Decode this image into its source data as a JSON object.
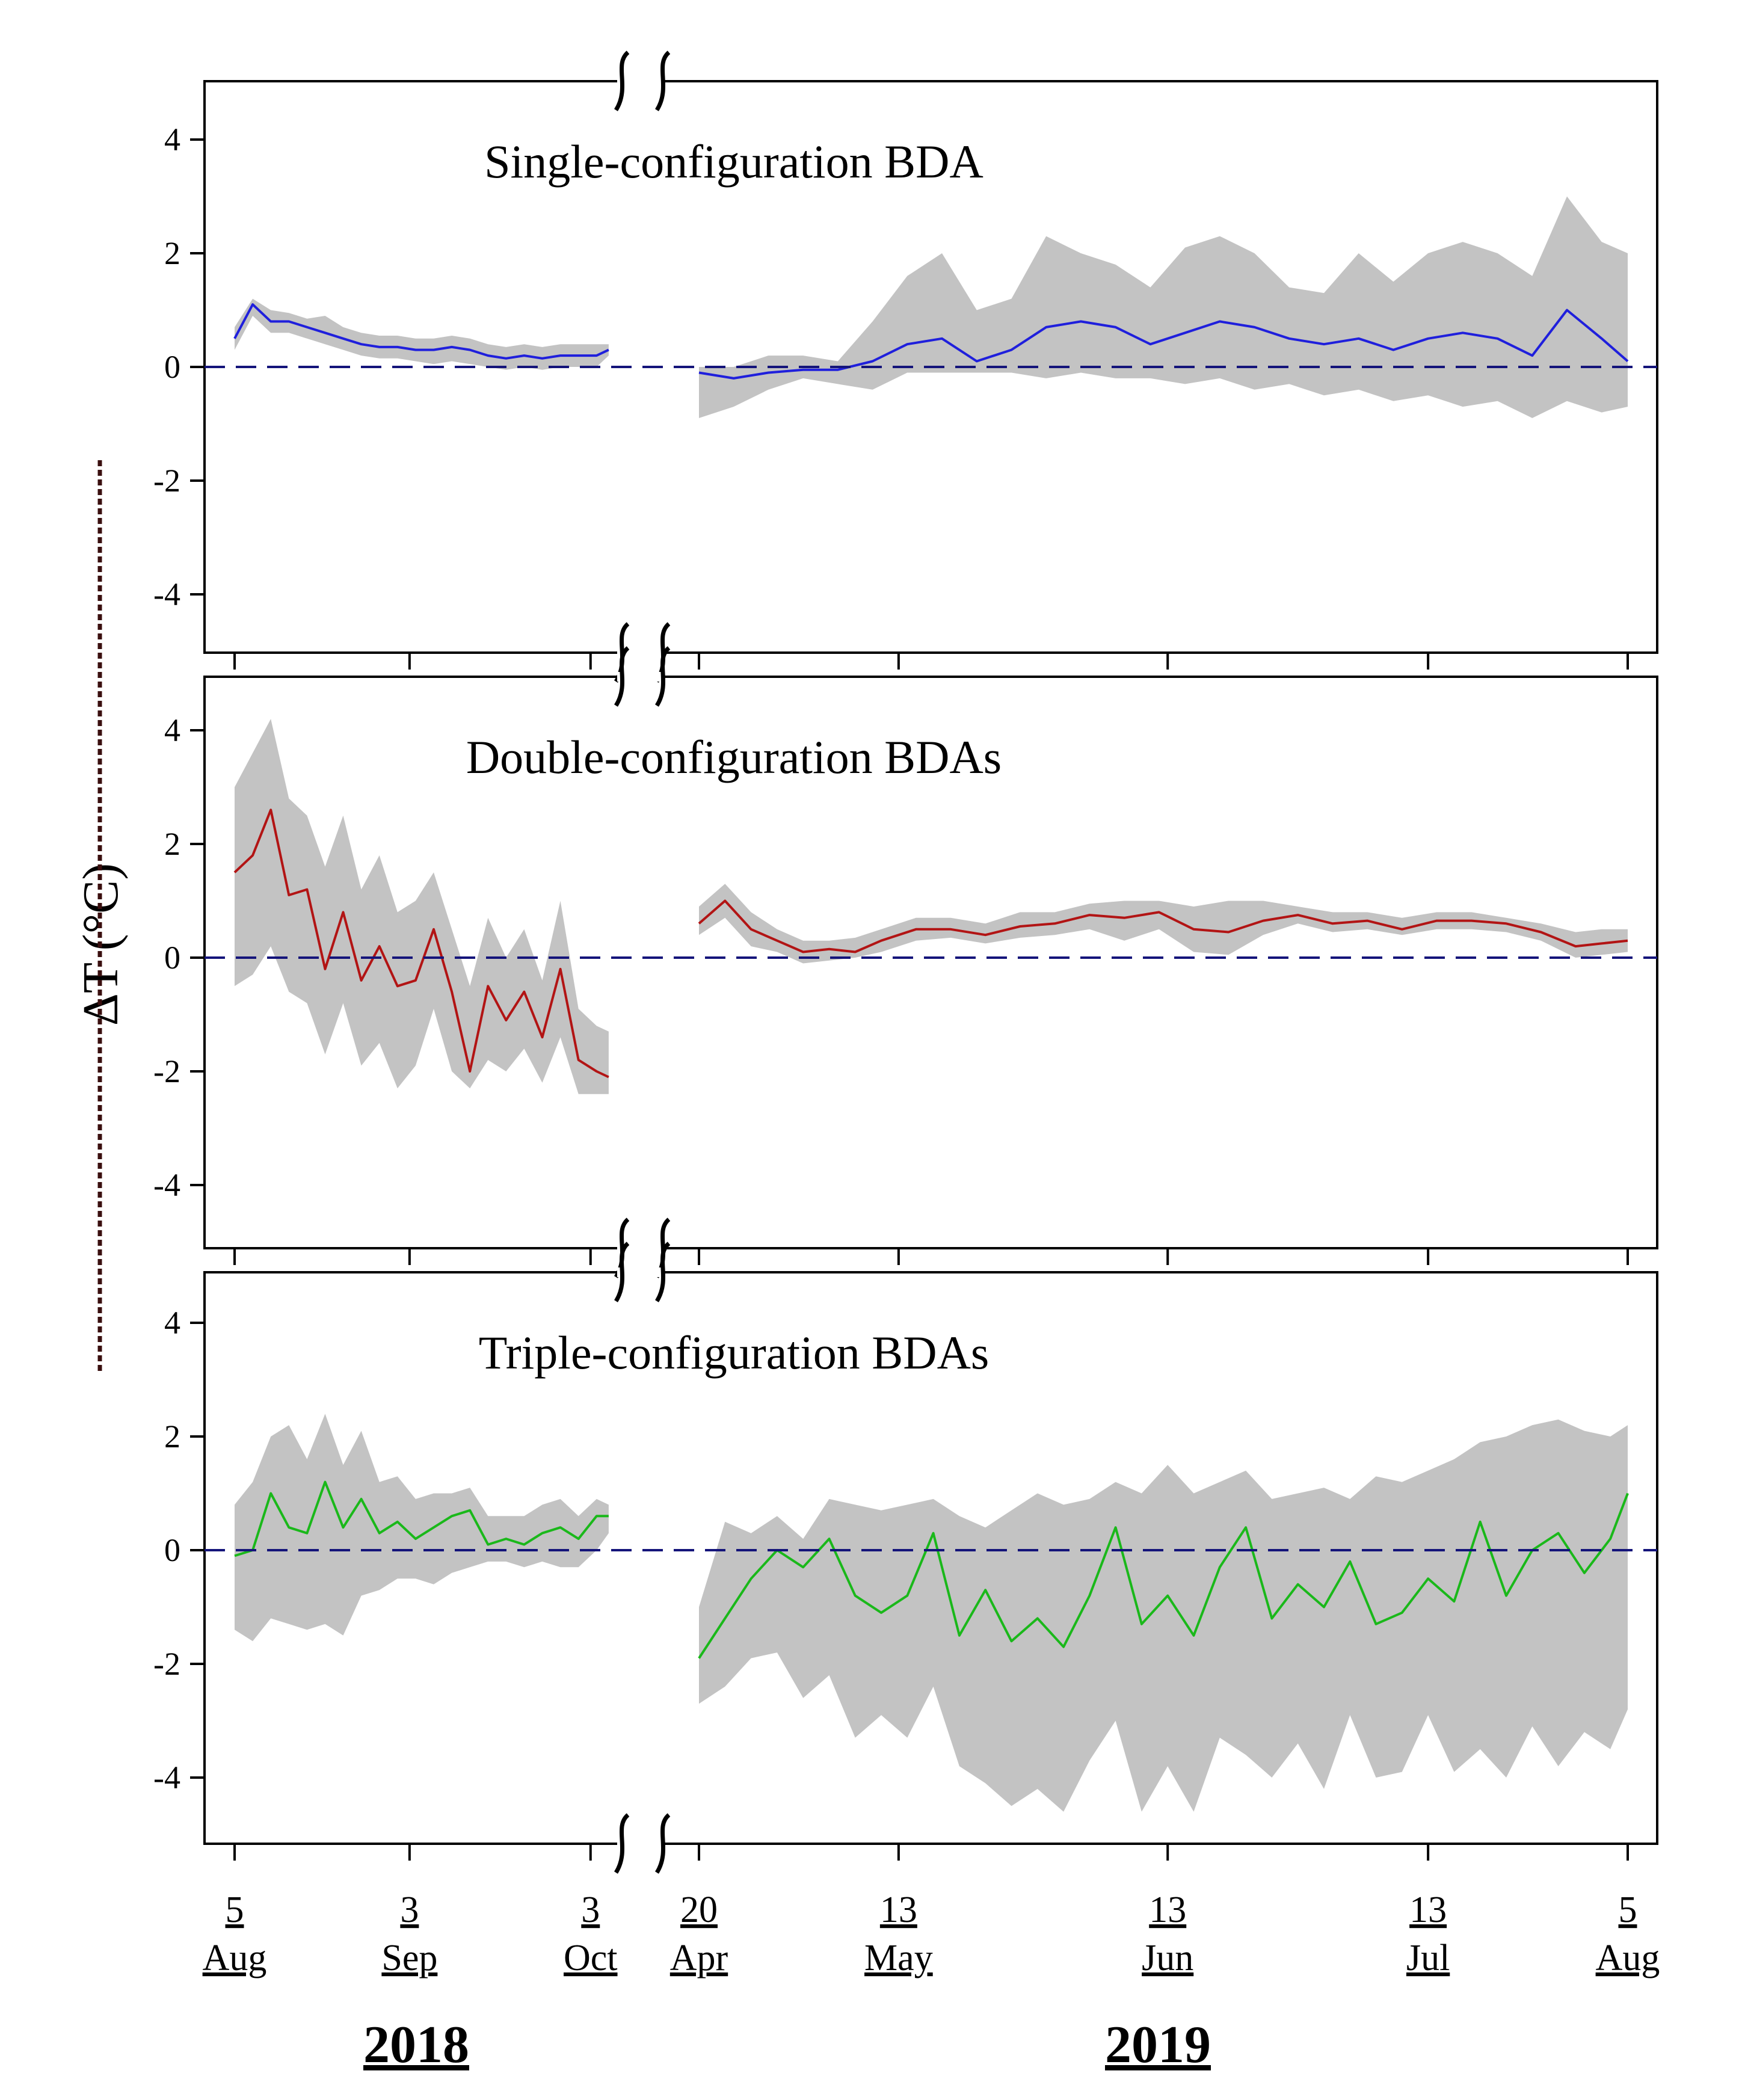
{
  "chart_data": {
    "type": "line",
    "ylabel": "ΔT (°C)",
    "y_ticks": [
      4,
      2,
      0,
      -2,
      -4
    ],
    "ylim": [
      -5,
      5
    ],
    "x_ticks": [
      {
        "day": "5",
        "month": "Aug",
        "days_since_2018_08_05": 0
      },
      {
        "day": "3",
        "month": "Sep",
        "days_since_2018_08_05": 29
      },
      {
        "day": "3",
        "month": "Oct",
        "days_since_2018_08_05": 59
      },
      {
        "day": "20",
        "month": "Apr",
        "days_since_2019_04_20": 0
      },
      {
        "day": "13",
        "month": "May",
        "days_since_2019_04_20": 23
      },
      {
        "day": "13",
        "month": "Jun",
        "days_since_2019_04_20": 54
      },
      {
        "day": "13",
        "month": "Jul",
        "days_since_2019_04_20": 84
      },
      {
        "day": "5",
        "month": "Aug",
        "days_since_2019_04_20": 107
      }
    ],
    "years": [
      "2018",
      "2019"
    ],
    "zero_line": 0,
    "panels": [
      {
        "title": "Single-configuration BDA",
        "line_color": "#1f1fdc",
        "series_2018": {
          "days": [
            0,
            3,
            6,
            9,
            12,
            15,
            18,
            21,
            24,
            27,
            30,
            33,
            36,
            39,
            42,
            45,
            48,
            51,
            54,
            57,
            60,
            62
          ],
          "mean": [
            0.5,
            1.1,
            0.8,
            0.8,
            0.7,
            0.6,
            0.5,
            0.4,
            0.35,
            0.35,
            0.3,
            0.3,
            0.35,
            0.3,
            0.2,
            0.15,
            0.2,
            0.15,
            0.2,
            0.2,
            0.2,
            0.3
          ],
          "upper": [
            0.7,
            1.2,
            1.0,
            0.95,
            0.85,
            0.9,
            0.7,
            0.6,
            0.55,
            0.55,
            0.5,
            0.5,
            0.55,
            0.5,
            0.4,
            0.35,
            0.4,
            0.35,
            0.4,
            0.4,
            0.4,
            0.4
          ],
          "lower": [
            0.3,
            0.9,
            0.6,
            0.6,
            0.5,
            0.4,
            0.3,
            0.2,
            0.15,
            0.15,
            0.1,
            0.05,
            0.1,
            0.05,
            0.0,
            -0.05,
            0.0,
            -0.05,
            0.0,
            0.0,
            0.0,
            0.2
          ]
        },
        "series_2019": {
          "days": [
            0,
            4,
            8,
            12,
            16,
            20,
            24,
            28,
            32,
            36,
            40,
            44,
            48,
            52,
            56,
            60,
            64,
            68,
            72,
            76,
            80,
            84,
            88,
            92,
            96,
            100,
            104,
            107
          ],
          "mean": [
            -0.1,
            -0.2,
            -0.1,
            -0.05,
            -0.05,
            0.1,
            0.4,
            0.5,
            0.1,
            0.3,
            0.7,
            0.8,
            0.7,
            0.4,
            0.6,
            0.8,
            0.7,
            0.5,
            0.4,
            0.5,
            0.3,
            0.5,
            0.6,
            0.5,
            0.2,
            1.0,
            0.5,
            0.1
          ],
          "upper": [
            0.0,
            0.0,
            0.2,
            0.2,
            0.1,
            0.8,
            1.6,
            2.0,
            1.0,
            1.2,
            2.3,
            2.0,
            1.8,
            1.4,
            2.1,
            2.3,
            2.0,
            1.4,
            1.3,
            2.0,
            1.5,
            2.0,
            2.2,
            2.0,
            1.6,
            3.0,
            2.2,
            2.0
          ],
          "lower": [
            -0.9,
            -0.7,
            -0.4,
            -0.2,
            -0.3,
            -0.4,
            -0.1,
            -0.1,
            -0.1,
            -0.1,
            -0.2,
            -0.1,
            -0.2,
            -0.2,
            -0.3,
            -0.2,
            -0.4,
            -0.3,
            -0.5,
            -0.4,
            -0.6,
            -0.5,
            -0.7,
            -0.6,
            -0.9,
            -0.6,
            -0.8,
            -0.7
          ]
        }
      },
      {
        "title": "Double-configuration BDAs",
        "line_color": "#b21414",
        "series_2018": {
          "days": [
            0,
            3,
            6,
            9,
            12,
            15,
            18,
            21,
            24,
            27,
            30,
            33,
            36,
            39,
            42,
            45,
            48,
            51,
            54,
            57,
            60,
            62
          ],
          "mean": [
            1.5,
            1.8,
            2.6,
            1.1,
            1.2,
            -0.2,
            0.8,
            -0.4,
            0.2,
            -0.5,
            -0.4,
            0.5,
            -0.6,
            -2.0,
            -0.5,
            -1.1,
            -0.6,
            -1.4,
            -0.2,
            -1.8,
            -2.0,
            -2.1
          ],
          "upper": [
            3.0,
            3.6,
            4.2,
            2.8,
            2.5,
            1.6,
            2.5,
            1.2,
            1.8,
            0.8,
            1.0,
            1.5,
            0.5,
            -0.5,
            0.7,
            0.0,
            0.5,
            -0.4,
            1.0,
            -0.9,
            -1.2,
            -1.3
          ],
          "lower": [
            -0.5,
            -0.3,
            0.2,
            -0.6,
            -0.8,
            -1.7,
            -0.8,
            -1.9,
            -1.5,
            -2.3,
            -1.9,
            -0.9,
            -2.0,
            -2.3,
            -1.8,
            -2.0,
            -1.6,
            -2.2,
            -1.4,
            -2.4,
            -2.4,
            -2.4
          ]
        },
        "series_2019": {
          "days": [
            0,
            3,
            6,
            9,
            12,
            15,
            18,
            21,
            25,
            29,
            33,
            37,
            41,
            45,
            49,
            53,
            57,
            61,
            65,
            69,
            73,
            77,
            81,
            85,
            89,
            93,
            97,
            101,
            104,
            107
          ],
          "mean": [
            0.6,
            1.0,
            0.5,
            0.3,
            0.1,
            0.15,
            0.1,
            0.3,
            0.5,
            0.5,
            0.4,
            0.55,
            0.6,
            0.75,
            0.7,
            0.8,
            0.5,
            0.45,
            0.65,
            0.75,
            0.6,
            0.65,
            0.5,
            0.65,
            0.65,
            0.6,
            0.45,
            0.2,
            0.25,
            0.3
          ],
          "upper": [
            0.9,
            1.3,
            0.8,
            0.5,
            0.3,
            0.3,
            0.35,
            0.5,
            0.7,
            0.7,
            0.6,
            0.8,
            0.8,
            0.95,
            1.0,
            1.0,
            0.9,
            1.0,
            1.0,
            0.9,
            0.8,
            0.8,
            0.7,
            0.8,
            0.8,
            0.7,
            0.6,
            0.45,
            0.5,
            0.5
          ],
          "lower": [
            0.4,
            0.7,
            0.2,
            0.1,
            -0.1,
            -0.05,
            0.0,
            0.1,
            0.3,
            0.35,
            0.25,
            0.35,
            0.4,
            0.5,
            0.3,
            0.5,
            0.1,
            0.05,
            0.4,
            0.6,
            0.45,
            0.5,
            0.4,
            0.5,
            0.5,
            0.45,
            0.3,
            0.0,
            0.05,
            0.1
          ]
        }
      },
      {
        "title": "Triple-configuration BDAs",
        "line_color": "#1ab81a",
        "series_2018": {
          "days": [
            0,
            3,
            6,
            9,
            12,
            15,
            18,
            21,
            24,
            27,
            30,
            33,
            36,
            39,
            42,
            45,
            48,
            51,
            54,
            57,
            60,
            62
          ],
          "mean": [
            -0.1,
            0.0,
            1.0,
            0.4,
            0.3,
            1.2,
            0.4,
            0.9,
            0.3,
            0.5,
            0.2,
            0.4,
            0.6,
            0.7,
            0.1,
            0.2,
            0.1,
            0.3,
            0.4,
            0.2,
            0.6,
            0.6
          ],
          "upper": [
            0.8,
            1.2,
            2.0,
            2.2,
            1.6,
            2.4,
            1.5,
            2.1,
            1.2,
            1.3,
            0.9,
            1.0,
            1.0,
            1.1,
            0.6,
            0.6,
            0.6,
            0.8,
            0.9,
            0.6,
            0.9,
            0.8
          ],
          "lower": [
            -1.4,
            -1.6,
            -1.2,
            -1.3,
            -1.4,
            -1.3,
            -1.5,
            -0.8,
            -0.7,
            -0.5,
            -0.5,
            -0.6,
            -0.4,
            -0.3,
            -0.2,
            -0.2,
            -0.3,
            -0.2,
            -0.3,
            -0.3,
            0.0,
            0.3
          ]
        },
        "series_2019": {
          "days": [
            0,
            3,
            6,
            9,
            12,
            15,
            18,
            21,
            24,
            27,
            30,
            33,
            36,
            39,
            42,
            45,
            48,
            51,
            54,
            57,
            60,
            63,
            66,
            69,
            72,
            75,
            78,
            81,
            84,
            87,
            90,
            93,
            96,
            99,
            102,
            105,
            107
          ],
          "mean": [
            -1.9,
            -1.2,
            -0.5,
            0.0,
            -0.3,
            0.2,
            -0.8,
            -1.1,
            -0.8,
            0.3,
            -1.5,
            -0.7,
            -1.6,
            -1.2,
            -1.7,
            -0.8,
            0.4,
            -1.3,
            -0.8,
            -1.5,
            -0.3,
            0.4,
            -1.2,
            -0.6,
            -1.0,
            -0.2,
            -1.3,
            -1.1,
            -0.5,
            -0.9,
            0.5,
            -0.8,
            0.0,
            0.3,
            -0.4,
            0.2,
            1.0
          ],
          "upper": [
            -1.0,
            0.5,
            0.3,
            0.6,
            0.2,
            0.9,
            0.8,
            0.7,
            0.8,
            0.9,
            0.6,
            0.4,
            0.7,
            1.0,
            0.8,
            0.9,
            1.2,
            1.0,
            1.5,
            1.0,
            1.2,
            1.4,
            0.9,
            1.0,
            1.1,
            0.9,
            1.3,
            1.2,
            1.4,
            1.6,
            1.9,
            2.0,
            2.2,
            2.3,
            2.1,
            2.0,
            2.2
          ],
          "lower": [
            -2.7,
            -2.4,
            -1.9,
            -1.8,
            -2.6,
            -2.2,
            -3.3,
            -2.9,
            -3.3,
            -2.4,
            -3.8,
            -4.1,
            -4.5,
            -4.2,
            -4.6,
            -3.7,
            -3.0,
            -4.6,
            -3.8,
            -4.6,
            -3.3,
            -3.6,
            -4.0,
            -3.4,
            -4.2,
            -2.9,
            -4.0,
            -3.9,
            -2.9,
            -3.9,
            -3.5,
            -4.0,
            -3.1,
            -3.8,
            -3.2,
            -3.5,
            -2.8
          ]
        }
      }
    ]
  }
}
